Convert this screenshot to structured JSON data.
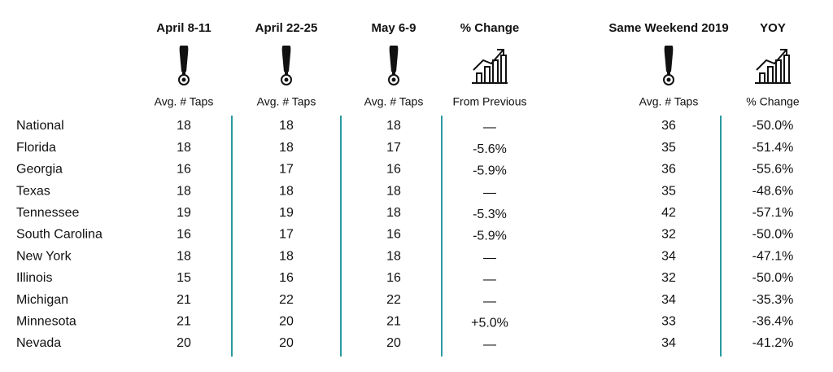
{
  "table": {
    "columns": [
      {
        "header": "April 8-11",
        "subheader": "Avg. # Taps"
      },
      {
        "header": "April 22-25",
        "subheader": "Avg. # Taps"
      },
      {
        "header": "May 6-9",
        "subheader": "Avg. # Taps"
      },
      {
        "header": "% Change",
        "subheader": "From Previous"
      },
      {
        "header": "Same Weekend 2019",
        "subheader": "Avg. # Taps"
      },
      {
        "header": "YOY",
        "subheader": "% Change"
      }
    ],
    "rows": [
      [
        "National",
        18,
        18,
        18,
        "—",
        36,
        "-50.0%"
      ],
      [
        "Florida",
        18,
        18,
        17,
        "-5.6%",
        35,
        "-51.4%"
      ],
      [
        "Georgia",
        16,
        17,
        16,
        "-5.9%",
        36,
        "-55.6%"
      ],
      [
        "Texas",
        18,
        18,
        18,
        "—",
        35,
        "-48.6%"
      ],
      [
        "Tennessee",
        19,
        19,
        18,
        "-5.3%",
        42,
        "-57.1%"
      ],
      [
        "South Carolina",
        16,
        17,
        16,
        "-5.9%",
        32,
        "-50.0%"
      ],
      [
        "New York",
        18,
        18,
        18,
        "—",
        34,
        "-47.1%"
      ],
      [
        "Illinois",
        15,
        16,
        16,
        "—",
        32,
        "-50.0%"
      ],
      [
        "Michigan",
        21,
        22,
        22,
        "—",
        34,
        "-35.3%"
      ],
      [
        "Minnesota",
        21,
        20,
        21,
        "+5.0%",
        33,
        "-36.4%"
      ],
      [
        "Nevada",
        20,
        20,
        20,
        "—",
        34,
        "-41.2%"
      ]
    ]
  }
}
